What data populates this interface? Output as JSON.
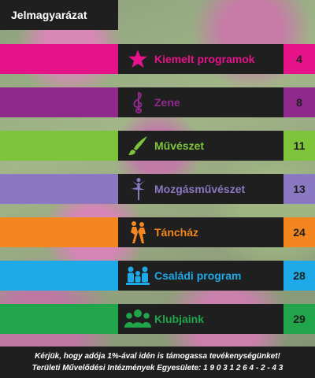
{
  "header": {
    "title": "Jelmagyarázat"
  },
  "legend": [
    {
      "label": "Kiemelt programok",
      "page": "4",
      "color": "#e5128a",
      "icon": "star-icon"
    },
    {
      "label": "Zene",
      "page": "8",
      "color": "#8f2a8c",
      "icon": "treble-clef-icon"
    },
    {
      "label": "Művészet",
      "page": "11",
      "color": "#7ec43a",
      "icon": "paintbrush-icon"
    },
    {
      "label": "Mozgásművészet",
      "page": "13",
      "color": "#8b78c2",
      "icon": "ballerina-icon"
    },
    {
      "label": "Táncház",
      "page": "24",
      "color": "#f3861f",
      "icon": "dancing-couple-icon"
    },
    {
      "label": "Családi program",
      "page": "28",
      "color": "#1ea9e8",
      "icon": "family-icon"
    },
    {
      "label": "Klubjaink",
      "page": "29",
      "color": "#21a54a",
      "icon": "group-icon"
    }
  ],
  "footer": {
    "line1": "Kérjük, hogy adója 1%-ával idén is támogassa tevékenységünket!",
    "line2": "Területi Művelődési Intézmények Egyesülete: 1 9 0 3 1 2 6 4 - 2 - 4 3"
  }
}
